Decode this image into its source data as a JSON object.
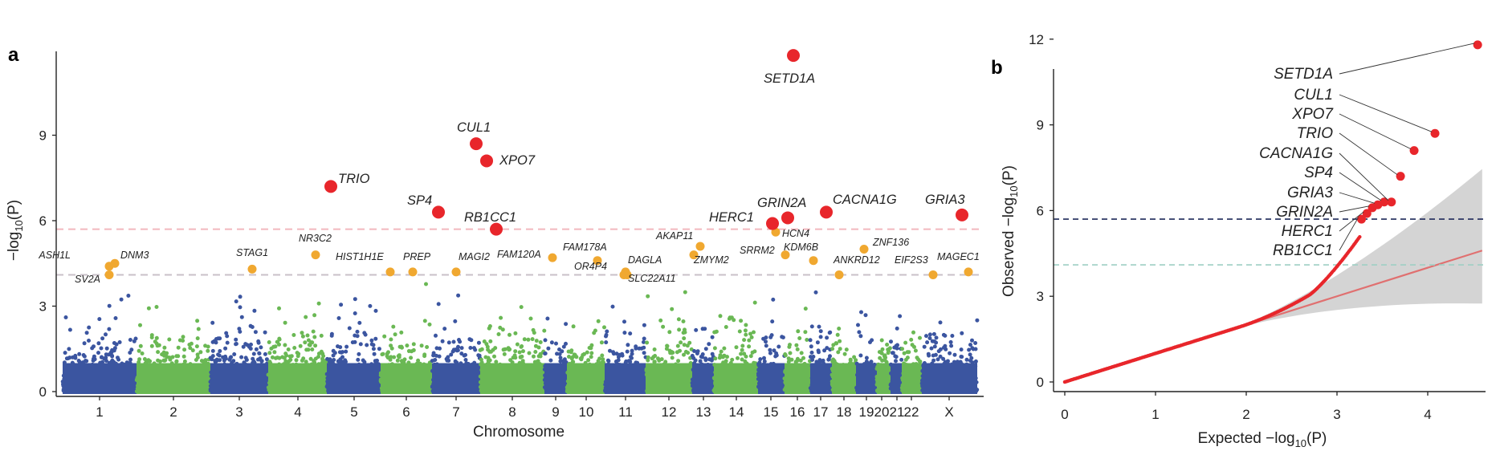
{
  "chart_data": [
    {
      "type": "scatter",
      "panel_label": "a",
      "xlabel": "Chromosome",
      "ylabel": "−log10(P)",
      "ylim": [
        0,
        12
      ],
      "yticks": [
        "0",
        "3",
        "6",
        "9"
      ],
      "chromosomes": [
        "1",
        "2",
        "3",
        "4",
        "5",
        "6",
        "7",
        "8",
        "9",
        "10",
        "11",
        "12",
        "13",
        "14",
        "15",
        "16",
        "17",
        "18",
        "19",
        "20",
        "21",
        "22",
        "X"
      ],
      "chromosome_tick_labels": [
        "1",
        "2",
        "3",
        "4",
        "5",
        "6",
        "7",
        "8",
        "9",
        "10",
        "11",
        "12",
        "13",
        "14",
        "15",
        "16",
        "17",
        "18",
        "19",
        "20",
        "21",
        "22",
        "X"
      ],
      "series_colors": {
        "odd": "#3b55a0",
        "even": "#6ab854",
        "suggestive": "#f0a830",
        "significant": "#e8262b"
      },
      "threshold_lines": [
        {
          "y": 5.7,
          "color": "#f2b8be",
          "style": "dashed"
        },
        {
          "y": 4.1,
          "color": "#c9c0c8",
          "style": "dashed"
        }
      ],
      "background_points": "dense cloud of association values from ~0 to ~4 across all chromosomes",
      "significant_genes": [
        {
          "gene": "SETD1A",
          "chromosome": "16",
          "y": 11.8
        },
        {
          "gene": "CUL1",
          "chromosome": "7",
          "y": 8.7
        },
        {
          "gene": "XPO7",
          "chromosome": "8",
          "y": 8.1
        },
        {
          "gene": "TRIO",
          "chromosome": "5",
          "y": 7.2
        },
        {
          "gene": "SP4",
          "chromosome": "7",
          "y": 6.3
        },
        {
          "gene": "RB1CC1",
          "chromosome": "8",
          "y": 5.7
        },
        {
          "gene": "HERC1",
          "chromosome": "15",
          "y": 5.9
        },
        {
          "gene": "GRIN2A",
          "chromosome": "16",
          "y": 6.1
        },
        {
          "gene": "CACNA1G",
          "chromosome": "17",
          "y": 6.3
        },
        {
          "gene": "GRIA3",
          "chromosome": "X",
          "y": 6.2
        }
      ],
      "suggestive_genes": [
        {
          "gene": "ASH1L",
          "chromosome": "1",
          "y": 4.4
        },
        {
          "gene": "DNM3",
          "chromosome": "1",
          "y": 4.5
        },
        {
          "gene": "SV2A",
          "chromosome": "1",
          "y": 4.1
        },
        {
          "gene": "STAG1",
          "chromosome": "3",
          "y": 4.3
        },
        {
          "gene": "NR3C2",
          "chromosome": "4",
          "y": 4.8
        },
        {
          "gene": "HIST1H1E",
          "chromosome": "6",
          "y": 4.2
        },
        {
          "gene": "PREP",
          "chromosome": "6",
          "y": 4.2
        },
        {
          "gene": "MAGI2",
          "chromosome": "7",
          "y": 4.2
        },
        {
          "gene": "FAM120A",
          "chromosome": "9",
          "y": 4.7
        },
        {
          "gene": "FAM178A",
          "chromosome": "10",
          "y": 4.6
        },
        {
          "gene": "OR4P4",
          "chromosome": "11",
          "y": 4.2
        },
        {
          "gene": "DAGLA",
          "chromosome": "11",
          "y": 4.1
        },
        {
          "gene": "SLC22A11",
          "chromosome": "11",
          "y": 4.1
        },
        {
          "gene": "AKAP11",
          "chromosome": "13",
          "y": 5.1
        },
        {
          "gene": "ZMYM2",
          "chromosome": "13",
          "y": 4.8
        },
        {
          "gene": "SRRM2",
          "chromosome": "16",
          "y": 4.8
        },
        {
          "gene": "HCN4",
          "chromosome": "15",
          "y": 5.6
        },
        {
          "gene": "KDM6B",
          "chromosome": "17",
          "y": 4.6
        },
        {
          "gene": "ANKRD12",
          "chromosome": "18",
          "y": 4.1
        },
        {
          "gene": "ZNF136",
          "chromosome": "19",
          "y": 5.0
        },
        {
          "gene": "EIF2S3",
          "chromosome": "X",
          "y": 4.1
        },
        {
          "gene": "MAGEC1",
          "chromosome": "X",
          "y": 4.2
        }
      ]
    },
    {
      "type": "scatter",
      "panel_label": "b",
      "xlabel": "Expected −log10(P)",
      "ylabel": "Observed −log10(P)",
      "xlim": [
        0,
        4.6
      ],
      "ylim": [
        0,
        12
      ],
      "xticks": [
        "0",
        "1",
        "2",
        "3",
        "4"
      ],
      "yticks": [
        "0",
        "3",
        "6",
        "9",
        "12"
      ],
      "point_color": "#e8262b",
      "expected_line_color": "#e07070",
      "ci_band_color": "#d4d4d4",
      "threshold_lines": [
        {
          "y": 5.7,
          "color": "#1f2a5a",
          "style": "dashed"
        },
        {
          "y": 4.1,
          "color": "#9ecfc4",
          "style": "dashed"
        }
      ],
      "labeled_points": [
        {
          "gene": "SETD1A",
          "x": 4.55,
          "y": 11.8
        },
        {
          "gene": "CUL1",
          "x": 4.08,
          "y": 8.7
        },
        {
          "gene": "XPO7",
          "x": 3.85,
          "y": 8.1
        },
        {
          "gene": "TRIO",
          "x": 3.7,
          "y": 7.2
        },
        {
          "gene": "CACNA1G",
          "x": 3.6,
          "y": 6.3
        },
        {
          "gene": "SP4",
          "x": 3.52,
          "y": 6.3
        },
        {
          "gene": "GRIA3",
          "x": 3.45,
          "y": 6.2
        },
        {
          "gene": "GRIN2A",
          "x": 3.39,
          "y": 6.1
        },
        {
          "gene": "HERC1",
          "x": 3.33,
          "y": 5.9
        },
        {
          "gene": "RB1CC1",
          "x": 3.27,
          "y": 5.7
        }
      ]
    }
  ]
}
